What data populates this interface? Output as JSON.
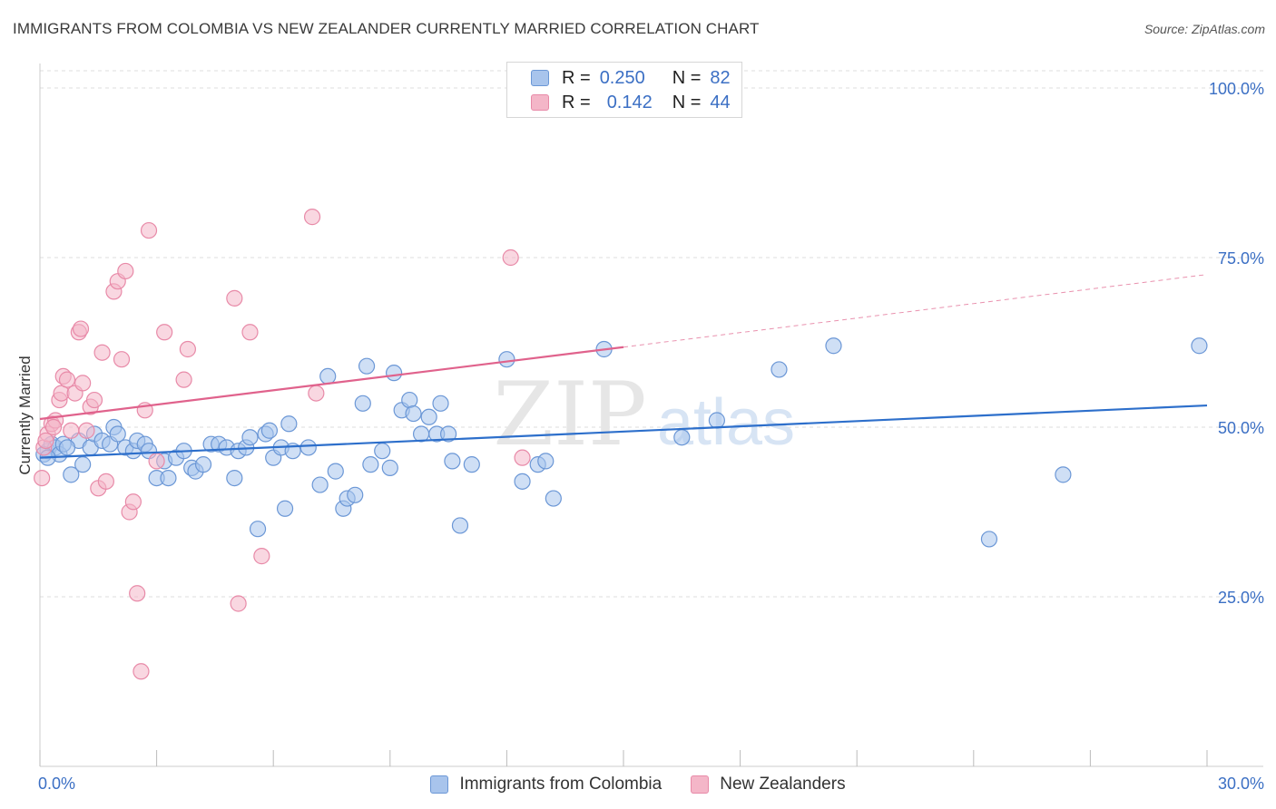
{
  "title": "IMMIGRANTS FROM COLOMBIA VS NEW ZEALANDER CURRENTLY MARRIED CORRELATION CHART",
  "source": "Source: ZipAtlas.com",
  "watermark": {
    "zip": "ZIP",
    "atlas": "atlas"
  },
  "colors": {
    "blue_fill": "#a8c4ec",
    "blue_stroke": "#6b97d6",
    "blue_line": "#2d6fcb",
    "pink_fill": "#f4b6c8",
    "pink_stroke": "#e88aa8",
    "pink_line": "#e0628c",
    "axis_label": "#3b6fc4",
    "grid": "#dcdcdc"
  },
  "legend": {
    "rows": [
      {
        "r_label": "R =",
        "r_value": "0.250",
        "n_label": "N =",
        "n_value": "82",
        "series": "blue"
      },
      {
        "r_label": "R =",
        "r_value": "0.142",
        "n_label": "N =",
        "n_value": "44",
        "series": "pink"
      }
    ]
  },
  "bottom_legend": [
    {
      "label": "Immigrants from Colombia",
      "series": "blue"
    },
    {
      "label": "New Zealanders",
      "series": "pink"
    }
  ],
  "chart_data": {
    "type": "scatter",
    "title": "IMMIGRANTS FROM COLOMBIA VS NEW ZEALANDER CURRENTLY MARRIED CORRELATION CHART",
    "xlabel": "",
    "ylabel": "Currently Married",
    "xlim": [
      0,
      30
    ],
    "ylim": [
      0,
      105
    ],
    "x_tick_labels": [
      {
        "value": 0,
        "label": "0.0%"
      },
      {
        "value": 30,
        "label": "30.0%"
      }
    ],
    "y_tick_labels": [
      {
        "value": 25,
        "label": "25.0%"
      },
      {
        "value": 50,
        "label": "50.0%"
      },
      {
        "value": 75,
        "label": "75.0%"
      },
      {
        "value": 100,
        "label": "100.0%"
      }
    ],
    "grid": true,
    "legend_placement": "top-center",
    "series": [
      {
        "name": "Immigrants from Colombia",
        "color": "blue",
        "trend": {
          "x": [
            0,
            30
          ],
          "y": [
            45.5,
            53.2
          ],
          "dashed_from": null
        },
        "points": [
          [
            0.2,
            46.5
          ],
          [
            0.3,
            47.5
          ],
          [
            0.4,
            47.0
          ],
          [
            0.5,
            46.0
          ],
          [
            0.6,
            47.5
          ],
          [
            0.8,
            43.0
          ],
          [
            1.0,
            48.0
          ],
          [
            1.1,
            44.5
          ],
          [
            1.3,
            47.0
          ],
          [
            1.4,
            49.0
          ],
          [
            1.6,
            48.0
          ],
          [
            1.8,
            47.5
          ],
          [
            1.9,
            50.0
          ],
          [
            2.0,
            49.0
          ],
          [
            2.2,
            47.0
          ],
          [
            2.4,
            46.5
          ],
          [
            2.5,
            48.0
          ],
          [
            2.7,
            47.5
          ],
          [
            2.8,
            46.5
          ],
          [
            3.0,
            42.5
          ],
          [
            3.2,
            45.0
          ],
          [
            3.3,
            42.5
          ],
          [
            3.5,
            45.5
          ],
          [
            3.7,
            46.5
          ],
          [
            3.9,
            44.0
          ],
          [
            4.0,
            43.5
          ],
          [
            4.2,
            44.5
          ],
          [
            4.4,
            47.5
          ],
          [
            4.6,
            47.5
          ],
          [
            4.8,
            47.0
          ],
          [
            5.0,
            42.5
          ],
          [
            5.1,
            46.5
          ],
          [
            5.3,
            47.0
          ],
          [
            5.4,
            48.5
          ],
          [
            5.6,
            35.0
          ],
          [
            5.8,
            49.0
          ],
          [
            5.9,
            49.5
          ],
          [
            6.0,
            45.5
          ],
          [
            6.2,
            47.0
          ],
          [
            6.3,
            38.0
          ],
          [
            6.4,
            50.5
          ],
          [
            6.5,
            46.5
          ],
          [
            6.9,
            47.0
          ],
          [
            7.2,
            41.5
          ],
          [
            7.4,
            57.5
          ],
          [
            7.6,
            43.5
          ],
          [
            7.8,
            38.0
          ],
          [
            7.9,
            39.5
          ],
          [
            8.1,
            40.0
          ],
          [
            8.3,
            53.5
          ],
          [
            8.4,
            59.0
          ],
          [
            8.5,
            44.5
          ],
          [
            8.8,
            46.5
          ],
          [
            9.0,
            44.0
          ],
          [
            9.1,
            58.0
          ],
          [
            9.3,
            52.5
          ],
          [
            9.5,
            54.0
          ],
          [
            9.6,
            52.0
          ],
          [
            9.8,
            49.0
          ],
          [
            10.0,
            51.5
          ],
          [
            10.2,
            49.0
          ],
          [
            10.3,
            53.5
          ],
          [
            10.5,
            49.0
          ],
          [
            10.6,
            45.0
          ],
          [
            10.8,
            35.5
          ],
          [
            11.1,
            44.5
          ],
          [
            12.0,
            60.0
          ],
          [
            12.4,
            42.0
          ],
          [
            12.8,
            44.5
          ],
          [
            13.0,
            45.0
          ],
          [
            13.2,
            39.5
          ],
          [
            14.5,
            61.5
          ],
          [
            16.5,
            48.5
          ],
          [
            17.4,
            51.0
          ],
          [
            19.0,
            58.5
          ],
          [
            20.4,
            62.0
          ],
          [
            24.4,
            33.5
          ],
          [
            26.3,
            43.0
          ],
          [
            29.8,
            62.0
          ],
          [
            0.1,
            46.0
          ],
          [
            0.2,
            45.5
          ],
          [
            0.7,
            47.0
          ]
        ]
      },
      {
        "name": "New Zealanders",
        "color": "pink",
        "trend": {
          "x": [
            0,
            15
          ],
          "y": [
            51.2,
            61.8
          ],
          "dashed_x": [
            15,
            30
          ],
          "dashed_y": [
            61.8,
            72.5
          ]
        },
        "points": [
          [
            0.05,
            42.5
          ],
          [
            0.1,
            47.0
          ],
          [
            0.2,
            49.0
          ],
          [
            0.3,
            50.5
          ],
          [
            0.4,
            51.0
          ],
          [
            0.5,
            54.0
          ],
          [
            0.55,
            55.0
          ],
          [
            0.6,
            57.5
          ],
          [
            0.7,
            57.0
          ],
          [
            0.8,
            49.5
          ],
          [
            0.9,
            55.0
          ],
          [
            1.0,
            64.0
          ],
          [
            1.05,
            64.5
          ],
          [
            1.1,
            56.5
          ],
          [
            1.2,
            49.5
          ],
          [
            1.3,
            53.0
          ],
          [
            1.4,
            54.0
          ],
          [
            1.5,
            41.0
          ],
          [
            1.6,
            61.0
          ],
          [
            1.7,
            42.0
          ],
          [
            1.9,
            70.0
          ],
          [
            2.0,
            71.5
          ],
          [
            2.1,
            60.0
          ],
          [
            2.2,
            73.0
          ],
          [
            2.3,
            37.5
          ],
          [
            2.4,
            39.0
          ],
          [
            2.5,
            25.5
          ],
          [
            2.6,
            14.0
          ],
          [
            2.7,
            52.5
          ],
          [
            2.8,
            79.0
          ],
          [
            3.0,
            45.0
          ],
          [
            3.2,
            64.0
          ],
          [
            3.7,
            57.0
          ],
          [
            3.8,
            61.5
          ],
          [
            5.0,
            69.0
          ],
          [
            5.1,
            24.0
          ],
          [
            5.4,
            64.0
          ],
          [
            5.7,
            31.0
          ],
          [
            7.0,
            81.0
          ],
          [
            7.1,
            55.0
          ],
          [
            12.1,
            75.0
          ],
          [
            12.4,
            45.5
          ],
          [
            0.15,
            48.0
          ],
          [
            0.35,
            50.0
          ]
        ]
      }
    ]
  }
}
